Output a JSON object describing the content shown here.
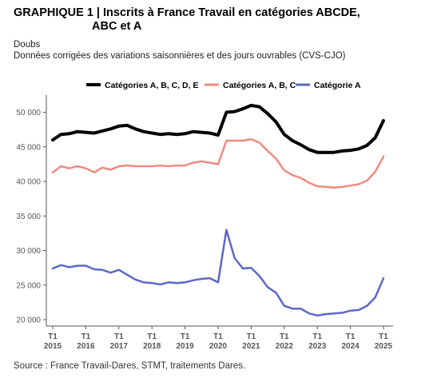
{
  "header": {
    "title_line1": "GRAPHIQUE 1 | Inscrits à France Travail en catégories ABCDE,",
    "title_line2": "ABC et A",
    "subtitle_line1": "Doubs",
    "subtitle_line2": "Données corrigées des variations saisonnières et des jours ouvrables (CVS-CJO)"
  },
  "footer": {
    "source": "Source : France Travail-Dares, STMT, traitements Dares."
  },
  "colors": {
    "series_abcde": "#000000",
    "series_abc": "#f08a7e",
    "series_a": "#5b68c7",
    "axis": "#555555",
    "tick_text": "#555555"
  },
  "chart_data": {
    "type": "line",
    "title": "",
    "xlabel": "",
    "ylabel": "",
    "ylim": [
      20000,
      52000
    ],
    "grid": false,
    "legend_position": "top",
    "y_ticks": [
      20000,
      25000,
      30000,
      35000,
      40000,
      45000,
      50000
    ],
    "y_tick_labels": [
      "20 000",
      "25 000",
      "30 000",
      "35 000",
      "40 000",
      "45 000",
      "50 000"
    ],
    "x_ticks": [
      {
        "t": 2015.0,
        "top": "T1",
        "bottom": "2015"
      },
      {
        "t": 2016.0,
        "top": "T1",
        "bottom": "2016"
      },
      {
        "t": 2017.0,
        "top": "T1",
        "bottom": "2017"
      },
      {
        "t": 2018.0,
        "top": "T1",
        "bottom": "2018"
      },
      {
        "t": 2019.0,
        "top": "T1",
        "bottom": "2019"
      },
      {
        "t": 2020.0,
        "top": "T1",
        "bottom": "2020"
      },
      {
        "t": 2021.0,
        "top": "T1",
        "bottom": "2021"
      },
      {
        "t": 2022.0,
        "top": "T1",
        "bottom": "2022"
      },
      {
        "t": 2023.0,
        "top": "T1",
        "bottom": "2023"
      },
      {
        "t": 2024.0,
        "top": "T1",
        "bottom": "2024"
      },
      {
        "t": 2025.0,
        "top": "T1",
        "bottom": "2025"
      }
    ],
    "x": [
      2015.0,
      2015.25,
      2015.5,
      2015.75,
      2016.0,
      2016.25,
      2016.5,
      2016.75,
      2017.0,
      2017.25,
      2017.5,
      2017.75,
      2018.0,
      2018.25,
      2018.5,
      2018.75,
      2019.0,
      2019.25,
      2019.5,
      2019.75,
      2020.0,
      2020.25,
      2020.5,
      2020.75,
      2021.0,
      2021.25,
      2021.5,
      2021.75,
      2022.0,
      2022.25,
      2022.5,
      2022.75,
      2023.0,
      2023.25,
      2023.5,
      2023.75,
      2024.0,
      2024.25,
      2024.5,
      2024.75,
      2025.0
    ],
    "series": [
      {
        "name": "Catégories A, B, C, D, E",
        "color": "#000000",
        "width": 4,
        "values": [
          46000,
          46800,
          46900,
          47200,
          47100,
          47000,
          47300,
          47600,
          48000,
          48100,
          47600,
          47200,
          47000,
          46800,
          46900,
          46800,
          46900,
          47200,
          47100,
          47000,
          46700,
          50000,
          50100,
          50500,
          51000,
          50800,
          49800,
          48600,
          46800,
          45900,
          45300,
          44600,
          44200,
          44200,
          44200,
          44400,
          44500,
          44700,
          45200,
          46300,
          48800
        ]
      },
      {
        "name": "Catégories A, B, C",
        "color": "#f08a7e",
        "width": 2.5,
        "values": [
          41300,
          42200,
          41900,
          42200,
          41900,
          41300,
          42000,
          41700,
          42200,
          42300,
          42200,
          42200,
          42200,
          42300,
          42200,
          42300,
          42300,
          42700,
          42900,
          42700,
          42500,
          45900,
          45900,
          45900,
          46100,
          45600,
          44400,
          43300,
          41600,
          40900,
          40500,
          39800,
          39300,
          39200,
          39100,
          39200,
          39400,
          39600,
          40100,
          41400,
          43600
        ]
      },
      {
        "name": "Catégorie A",
        "color": "#5b68c7",
        "width": 2.5,
        "values": [
          27400,
          27900,
          27600,
          27800,
          27800,
          27300,
          27200,
          26800,
          27200,
          26500,
          25800,
          25400,
          25300,
          25100,
          25400,
          25300,
          25400,
          25700,
          25900,
          26000,
          25400,
          33000,
          28900,
          27400,
          27500,
          26300,
          24700,
          23900,
          22000,
          21600,
          21600,
          20900,
          20600,
          20800,
          20900,
          21000,
          21300,
          21400,
          22000,
          23200,
          26000
        ]
      }
    ]
  }
}
